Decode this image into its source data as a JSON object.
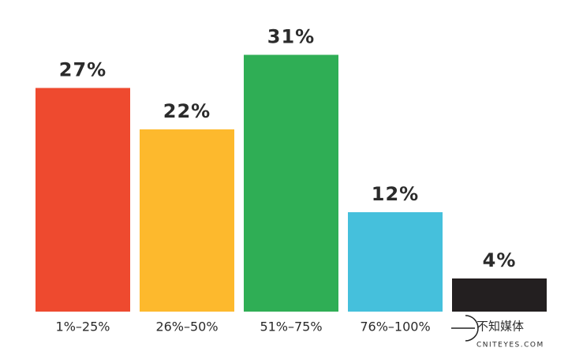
{
  "chart_data": {
    "type": "bar",
    "categories": [
      "1%–25%",
      "26%–50%",
      "51%–75%",
      "76%–100%",
      ""
    ],
    "values": [
      27,
      22,
      31,
      12,
      4
    ],
    "value_labels": [
      "27%",
      "22%",
      "31%",
      "12%",
      "4%"
    ],
    "colors": [
      "#ee4a2f",
      "#fdb92d",
      "#2fae55",
      "#45c0dc",
      "#231f20"
    ],
    "watermark": [
      "不知媒体",
      "CNITEYES.COM"
    ]
  }
}
